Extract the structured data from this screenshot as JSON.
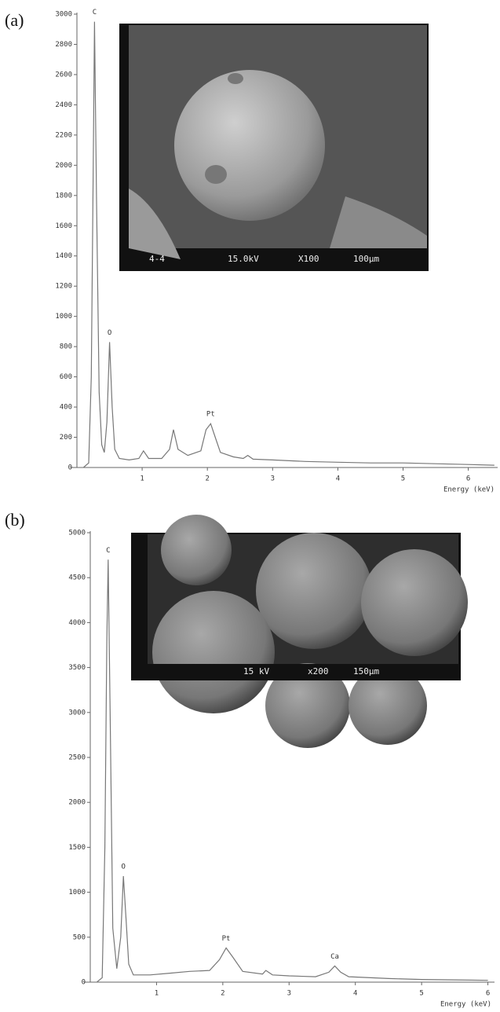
{
  "chart_data": [
    {
      "type": "line",
      "panel": "(a)",
      "xlabel": "Energy (keV)",
      "color": "#777777",
      "xlim": [
        0,
        6.45
      ],
      "ylim": [
        0,
        3000
      ],
      "xticks": [
        1,
        2,
        3,
        4,
        5,
        6
      ],
      "yticks": [
        0,
        200,
        400,
        600,
        800,
        1000,
        1200,
        1400,
        1600,
        1800,
        2000,
        2200,
        2400,
        2600,
        2800,
        3000
      ],
      "x": [
        0.1,
        0.18,
        0.22,
        0.25,
        0.27,
        0.3,
        0.34,
        0.38,
        0.42,
        0.46,
        0.5,
        0.54,
        0.58,
        0.65,
        0.8,
        0.95,
        1.02,
        1.1,
        1.3,
        1.42,
        1.48,
        1.55,
        1.7,
        1.9,
        1.98,
        2.05,
        2.12,
        2.2,
        2.4,
        2.55,
        2.62,
        2.7,
        3.0,
        3.5,
        4.0,
        4.5,
        5.0,
        5.5,
        6.0,
        6.4
      ],
      "values": [
        0,
        30,
        600,
        2000,
        2950,
        1800,
        500,
        150,
        100,
        300,
        830,
        400,
        120,
        60,
        50,
        60,
        110,
        60,
        60,
        120,
        250,
        120,
        80,
        110,
        250,
        290,
        200,
        100,
        70,
        60,
        80,
        55,
        50,
        40,
        35,
        30,
        30,
        25,
        20,
        15
      ],
      "peaks": [
        {
          "label": "C",
          "x": 0.27,
          "y": 2950
        },
        {
          "label": "O",
          "x": 0.5,
          "y": 830
        },
        {
          "label": "Pt",
          "x": 2.05,
          "y": 290
        }
      ],
      "inset_labels": [
        "4-4",
        "15.0kV",
        "X100",
        "100µm"
      ]
    },
    {
      "type": "line",
      "panel": "(b)",
      "xlabel": "Energy (keV)",
      "color": "#777777",
      "xlim": [
        0,
        6.1
      ],
      "ylim": [
        0,
        5000
      ],
      "xticks": [
        1,
        2,
        3,
        4,
        5,
        6
      ],
      "yticks": [
        0,
        500,
        1000,
        1500,
        2000,
        2500,
        3000,
        3500,
        4000,
        4500,
        5000
      ],
      "x": [
        0.1,
        0.18,
        0.22,
        0.25,
        0.27,
        0.3,
        0.34,
        0.4,
        0.46,
        0.5,
        0.54,
        0.58,
        0.65,
        0.9,
        1.2,
        1.5,
        1.8,
        1.95,
        2.05,
        2.15,
        2.3,
        2.6,
        2.65,
        2.75,
        3.0,
        3.4,
        3.6,
        3.69,
        3.78,
        3.9,
        4.5,
        5.0,
        5.5,
        6.0
      ],
      "values": [
        0,
        50,
        1500,
        3800,
        4700,
        3000,
        600,
        150,
        500,
        1180,
        700,
        200,
        80,
        80,
        100,
        120,
        130,
        250,
        380,
        280,
        120,
        90,
        130,
        80,
        70,
        60,
        110,
        180,
        110,
        60,
        40,
        30,
        25,
        20
      ],
      "peaks": [
        {
          "label": "C",
          "x": 0.27,
          "y": 4700
        },
        {
          "label": "O",
          "x": 0.5,
          "y": 1180
        },
        {
          "label": "Pt",
          "x": 2.05,
          "y": 380
        },
        {
          "label": "Ca",
          "x": 3.69,
          "y": 180
        }
      ],
      "inset_labels": [
        "15 kV",
        "x200",
        "150µm"
      ]
    }
  ]
}
